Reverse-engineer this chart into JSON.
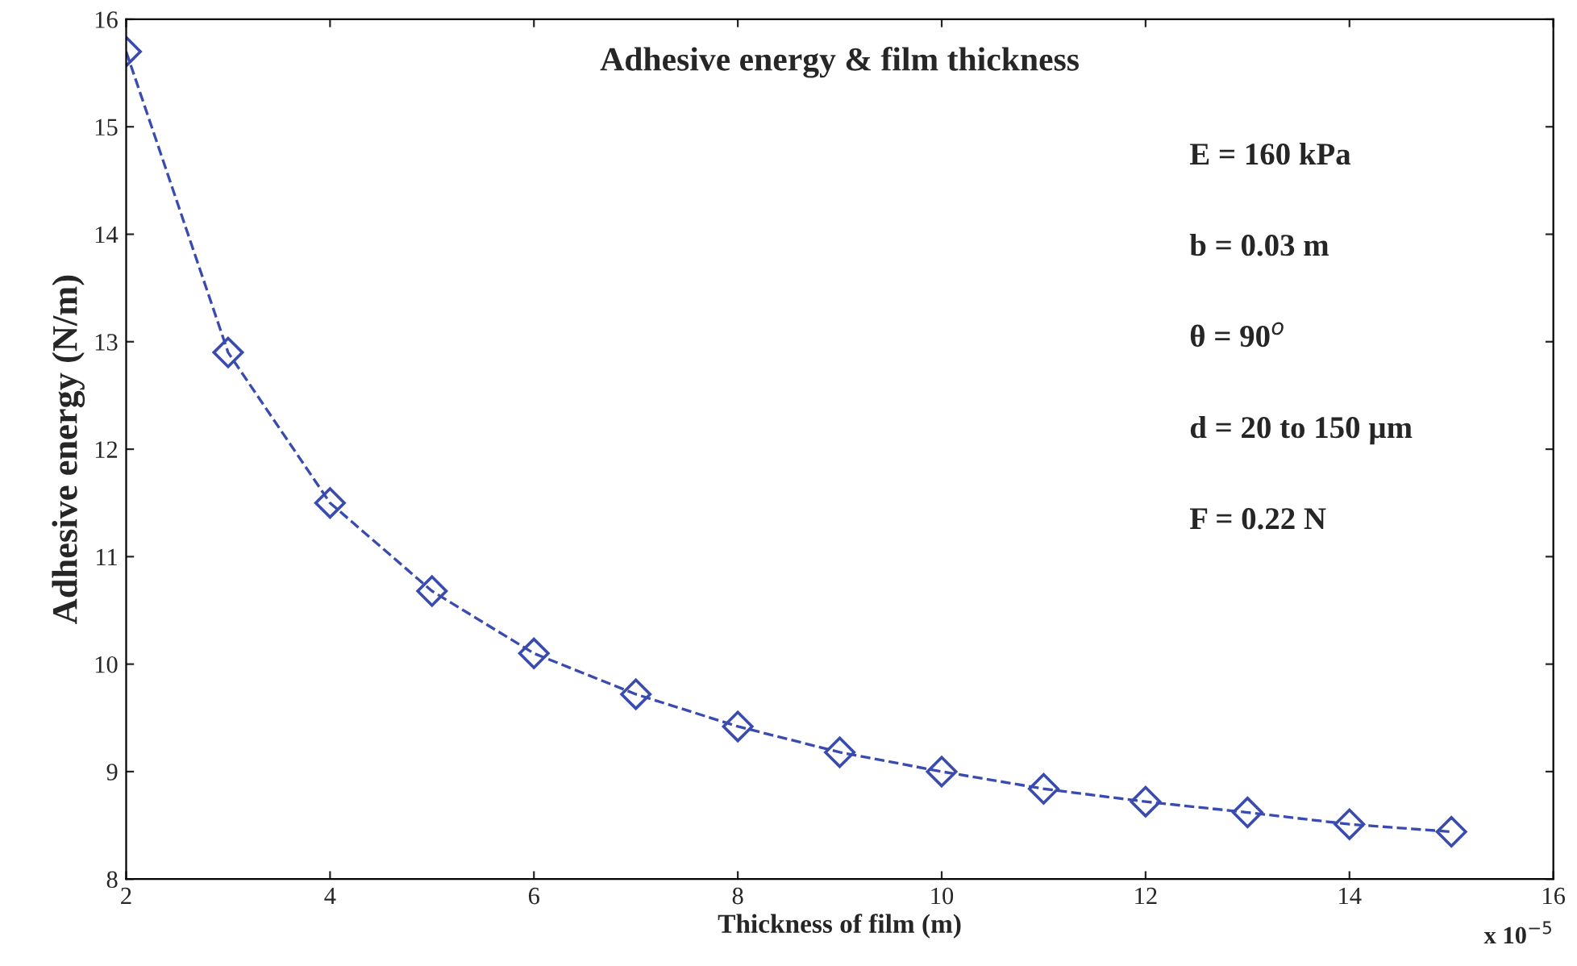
{
  "chart_data": {
    "type": "line",
    "title": "Adhesive energy & film thickness",
    "xlabel": "Thickness of film (m)",
    "ylabel": "Adhesive energy (N/m)",
    "x": [
      2,
      3,
      4,
      5,
      6,
      7,
      8,
      9,
      10,
      11,
      12,
      13,
      14,
      15
    ],
    "series": [
      {
        "color": "#3a4bb0",
        "values": [
          15.7,
          12.9,
          11.5,
          10.68,
          10.1,
          9.72,
          9.42,
          9.18,
          9.0,
          8.84,
          8.72,
          8.62,
          8.51,
          8.44
        ]
      }
    ],
    "xlim": [
      2,
      16
    ],
    "xticks": [
      2,
      4,
      6,
      8,
      10,
      12,
      14,
      16
    ],
    "ylim": [
      8,
      16
    ],
    "yticks": [
      8,
      9,
      10,
      11,
      12,
      13,
      14,
      15,
      16
    ],
    "marker": "diamond",
    "line_style": "dashed",
    "grid": false,
    "legend": false,
    "annotations": [
      "E = 160 kPa",
      "b = 0.03 m",
      "θ = 90$^{o}$",
      "d = 20 to 150 µm",
      "F = 0.22 N",
      "x 10$^{−5}$"
    ]
  }
}
